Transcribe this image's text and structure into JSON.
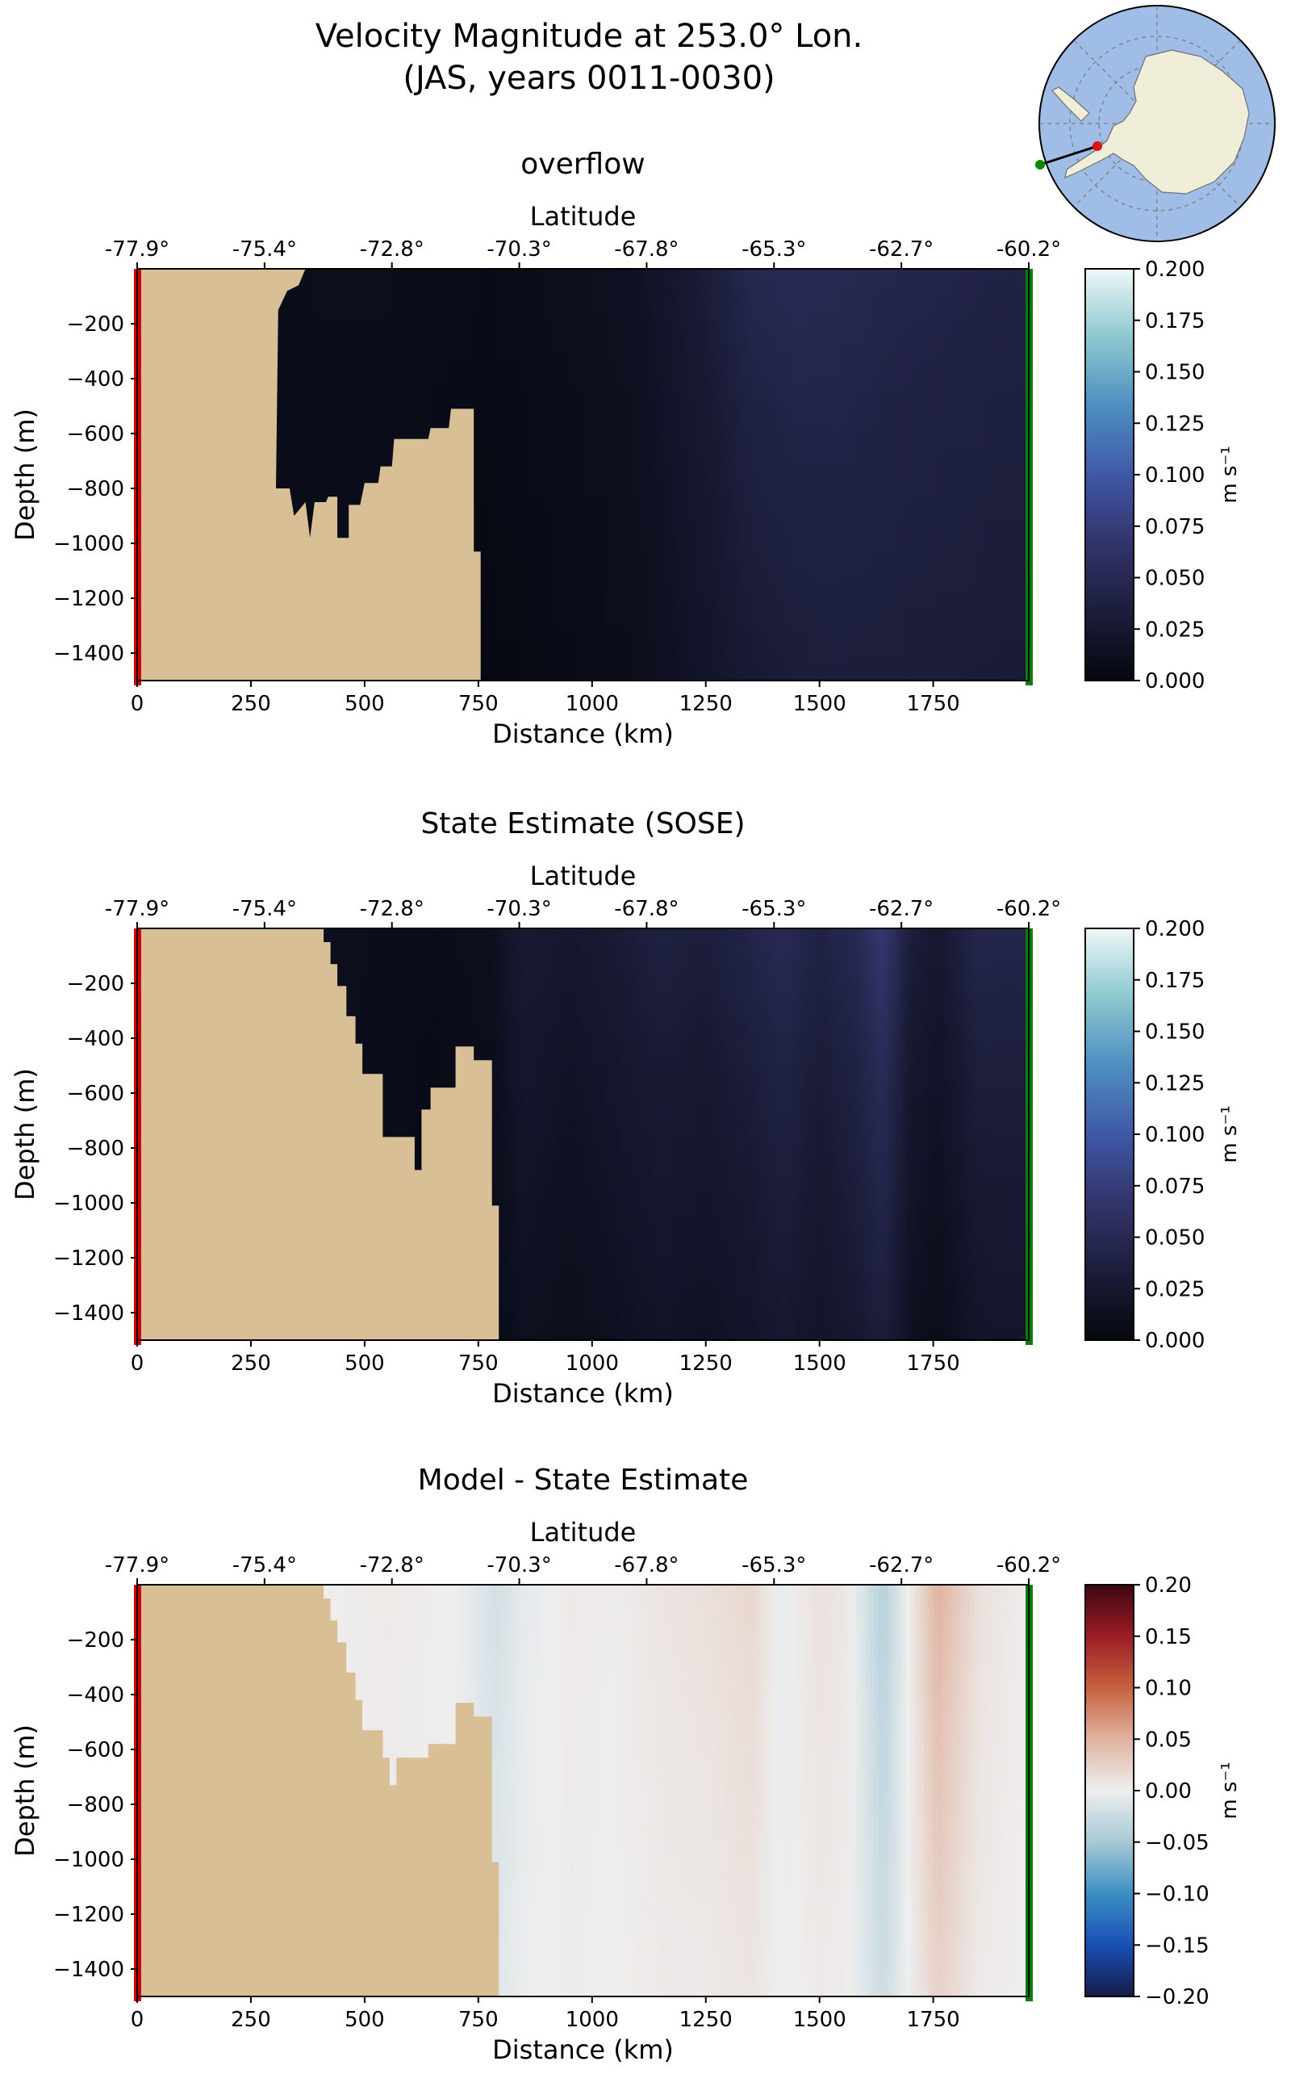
{
  "figure": {
    "title_line1": "Velocity Magnitude at 253.0° Lon.",
    "title_line2": "(JAS, years 0011-0030)"
  },
  "colors": {
    "land": "#d8bf95",
    "left_marker": "#d40000",
    "right_marker": "#0a7d0a",
    "ocean_map": "#9fbde6",
    "land_map": "#f0eed8",
    "speed_cmap": [
      "#05070f",
      "#1b1d3a",
      "#33346a",
      "#3f58a6",
      "#4d8fc0",
      "#8cc7cf",
      "#eef8f8"
    ],
    "diff_cmap": [
      "#161c48",
      "#1a4fb5",
      "#3b8fc2",
      "#a8c9d6",
      "#eeeeee",
      "#e0b3a0",
      "#c6613e",
      "#9c1c26",
      "#3d0710"
    ]
  },
  "inset_map": {
    "name": "antarctica-locator-map",
    "section_start": "red",
    "section_end": "green"
  },
  "chart_data": [
    {
      "type": "heatmap",
      "title": "overflow",
      "xlabel": "Distance (km)",
      "ylabel": "Depth (m)",
      "top_xlabel": "Latitude",
      "xlim": [
        0,
        1960
      ],
      "ylim": [
        -1500,
        0
      ],
      "x_ticks": [
        0,
        250,
        500,
        750,
        1000,
        1250,
        1500,
        1750
      ],
      "y_ticks": [
        -200,
        -400,
        -600,
        -800,
        -1000,
        -1200,
        -1400
      ],
      "lat_ticks": [
        "-77.9°",
        "-75.4°",
        "-72.8°",
        "-70.3°",
        "-67.8°",
        "-65.3°",
        "-62.7°",
        "-60.2°"
      ],
      "colorbar": {
        "label": "m s⁻¹",
        "range": [
          0.0,
          0.2
        ],
        "ticks": [
          "0.200",
          "0.175",
          "0.150",
          "0.125",
          "0.100",
          "0.075",
          "0.050",
          "0.025",
          "0.000"
        ]
      },
      "bathymetry": [
        [
          0,
          0
        ],
        [
          370,
          0
        ],
        [
          355,
          -60
        ],
        [
          330,
          -80
        ],
        [
          310,
          -150
        ],
        [
          305,
          -800
        ],
        [
          335,
          -800
        ],
        [
          345,
          -900
        ],
        [
          370,
          -850
        ],
        [
          380,
          -980
        ],
        [
          390,
          -850
        ],
        [
          415,
          -850
        ],
        [
          420,
          -830
        ],
        [
          440,
          -830
        ],
        [
          440,
          -980
        ],
        [
          465,
          -980
        ],
        [
          465,
          -860
        ],
        [
          490,
          -860
        ],
        [
          500,
          -780
        ],
        [
          530,
          -780
        ],
        [
          535,
          -720
        ],
        [
          560,
          -720
        ],
        [
          565,
          -620
        ],
        [
          640,
          -620
        ],
        [
          645,
          -580
        ],
        [
          685,
          -580
        ],
        [
          690,
          -510
        ],
        [
          740,
          -510
        ],
        [
          740,
          -1030
        ],
        [
          755,
          -1030
        ],
        [
          755,
          -1500
        ],
        [
          0,
          -1500
        ]
      ],
      "profile_x": [
        0,
        300,
        400,
        550,
        700,
        760,
        900,
        1100,
        1250,
        1350,
        1450,
        1550,
        1650,
        1750,
        1850,
        1960
      ],
      "profile_surface": [
        0.0,
        0.008,
        0.01,
        0.01,
        0.008,
        0.006,
        0.01,
        0.016,
        0.032,
        0.048,
        0.052,
        0.05,
        0.046,
        0.044,
        0.042,
        0.04
      ],
      "profile_bottom": [
        0.0,
        0.006,
        0.006,
        0.006,
        0.004,
        0.002,
        0.005,
        0.01,
        0.02,
        0.028,
        0.032,
        0.034,
        0.033,
        0.032,
        0.031,
        0.03
      ]
    },
    {
      "type": "heatmap",
      "title": "State Estimate (SOSE)",
      "xlabel": "Distance (km)",
      "ylabel": "Depth (m)",
      "top_xlabel": "Latitude",
      "xlim": [
        0,
        1960
      ],
      "ylim": [
        -1500,
        0
      ],
      "x_ticks": [
        0,
        250,
        500,
        750,
        1000,
        1250,
        1500,
        1750
      ],
      "y_ticks": [
        -200,
        -400,
        -600,
        -800,
        -1000,
        -1200,
        -1400
      ],
      "lat_ticks": [
        "-77.9°",
        "-75.4°",
        "-72.8°",
        "-70.3°",
        "-67.8°",
        "-65.3°",
        "-62.7°",
        "-60.2°"
      ],
      "colorbar": {
        "label": "m s⁻¹",
        "range": [
          0.0,
          0.2
        ],
        "ticks": [
          "0.200",
          "0.175",
          "0.150",
          "0.125",
          "0.100",
          "0.075",
          "0.050",
          "0.025",
          "0.000"
        ]
      },
      "bathymetry": [
        [
          0,
          0
        ],
        [
          410,
          0
        ],
        [
          410,
          -50
        ],
        [
          425,
          -50
        ],
        [
          425,
          -130
        ],
        [
          440,
          -130
        ],
        [
          440,
          -210
        ],
        [
          460,
          -210
        ],
        [
          460,
          -320
        ],
        [
          480,
          -320
        ],
        [
          480,
          -420
        ],
        [
          495,
          -420
        ],
        [
          495,
          -530
        ],
        [
          540,
          -530
        ],
        [
          540,
          -760
        ],
        [
          610,
          -760
        ],
        [
          610,
          -880
        ],
        [
          625,
          -880
        ],
        [
          625,
          -660
        ],
        [
          645,
          -660
        ],
        [
          645,
          -580
        ],
        [
          700,
          -580
        ],
        [
          700,
          -430
        ],
        [
          740,
          -430
        ],
        [
          740,
          -480
        ],
        [
          780,
          -480
        ],
        [
          780,
          -1010
        ],
        [
          795,
          -1010
        ],
        [
          795,
          -1500
        ],
        [
          0,
          -1500
        ]
      ],
      "profile_x": [
        0,
        400,
        500,
        650,
        780,
        850,
        950,
        1050,
        1150,
        1250,
        1350,
        1420,
        1500,
        1580,
        1640,
        1700,
        1760,
        1850,
        1960
      ],
      "profile_surface": [
        0.0,
        0.012,
        0.01,
        0.008,
        0.012,
        0.03,
        0.024,
        0.03,
        0.038,
        0.034,
        0.044,
        0.052,
        0.04,
        0.05,
        0.07,
        0.034,
        0.026,
        0.046,
        0.044
      ],
      "profile_bottom": [
        0.0,
        0.008,
        0.006,
        0.004,
        0.006,
        0.014,
        0.01,
        0.014,
        0.018,
        0.016,
        0.02,
        0.026,
        0.02,
        0.026,
        0.034,
        0.014,
        0.008,
        0.02,
        0.022
      ]
    },
    {
      "type": "heatmap",
      "title": "Model - State Estimate",
      "xlabel": "Distance (km)",
      "ylabel": "Depth (m)",
      "top_xlabel": "Latitude",
      "xlim": [
        0,
        1960
      ],
      "ylim": [
        -1500,
        0
      ],
      "x_ticks": [
        0,
        250,
        500,
        750,
        1000,
        1250,
        1500,
        1750
      ],
      "y_ticks": [
        -200,
        -400,
        -600,
        -800,
        -1000,
        -1200,
        -1400
      ],
      "lat_ticks": [
        "-77.9°",
        "-75.4°",
        "-72.8°",
        "-70.3°",
        "-67.8°",
        "-65.3°",
        "-62.7°",
        "-60.2°"
      ],
      "colorbar": {
        "label": "m s⁻¹",
        "range": [
          -0.2,
          0.2
        ],
        "ticks": [
          "0.20",
          "0.15",
          "0.10",
          "0.05",
          "0.00",
          "−0.05",
          "−0.10",
          "−0.15",
          "−0.20"
        ]
      },
      "bathymetry": [
        [
          0,
          0
        ],
        [
          410,
          0
        ],
        [
          410,
          -50
        ],
        [
          425,
          -50
        ],
        [
          425,
          -130
        ],
        [
          440,
          -130
        ],
        [
          440,
          -210
        ],
        [
          460,
          -210
        ],
        [
          460,
          -320
        ],
        [
          480,
          -320
        ],
        [
          480,
          -420
        ],
        [
          495,
          -420
        ],
        [
          495,
          -530
        ],
        [
          540,
          -530
        ],
        [
          540,
          -630
        ],
        [
          555,
          -630
        ],
        [
          555,
          -730
        ],
        [
          570,
          -730
        ],
        [
          570,
          -630
        ],
        [
          640,
          -630
        ],
        [
          640,
          -580
        ],
        [
          700,
          -580
        ],
        [
          700,
          -430
        ],
        [
          740,
          -430
        ],
        [
          740,
          -480
        ],
        [
          780,
          -480
        ],
        [
          780,
          -1010
        ],
        [
          795,
          -1010
        ],
        [
          795,
          -1500
        ],
        [
          0,
          -1500
        ]
      ],
      "profile_x": [
        0,
        400,
        550,
        700,
        790,
        850,
        950,
        1050,
        1150,
        1250,
        1350,
        1420,
        1500,
        1560,
        1640,
        1700,
        1760,
        1850,
        1960
      ],
      "profile_surface": [
        0.0,
        0.0,
        0.004,
        0.0,
        -0.02,
        -0.006,
        0.004,
        0.002,
        0.008,
        0.012,
        0.02,
        -0.004,
        0.012,
        0.006,
        -0.04,
        0.004,
        0.05,
        0.012,
        0.0
      ],
      "profile_bottom": [
        0.0,
        0.0,
        0.002,
        0.0,
        -0.01,
        -0.002,
        0.002,
        0.0,
        0.004,
        0.004,
        0.008,
        -0.002,
        0.004,
        0.002,
        -0.024,
        0.002,
        0.024,
        0.004,
        0.0
      ]
    }
  ]
}
